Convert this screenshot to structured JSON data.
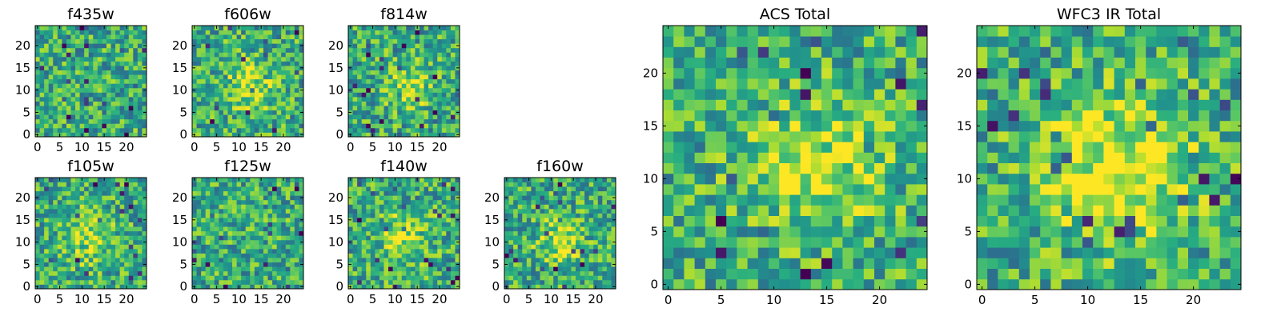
{
  "chart_data": [
    {
      "type": "heatmap",
      "title": "f435w",
      "xticks": [
        0,
        5,
        10,
        15,
        20
      ],
      "yticks": [
        0,
        5,
        10,
        15,
        20
      ],
      "grid": false,
      "colormap": "viridis",
      "pattern": "noise"
    },
    {
      "type": "heatmap",
      "title": "f606w",
      "xticks": [
        0,
        5,
        10,
        15,
        20
      ],
      "yticks": [
        0,
        5,
        10,
        15,
        20
      ],
      "grid": false,
      "colormap": "viridis",
      "pattern": "central-source"
    },
    {
      "type": "heatmap",
      "title": "f814w",
      "xticks": [
        0,
        5,
        10,
        15,
        20
      ],
      "yticks": [
        0,
        5,
        10,
        15,
        20
      ],
      "grid": false,
      "colormap": "viridis",
      "pattern": "central-source"
    },
    {
      "type": "heatmap",
      "title": "f105w",
      "xticks": [
        0,
        5,
        10,
        15,
        20
      ],
      "yticks": [
        0,
        5,
        10,
        15,
        20
      ],
      "grid": false,
      "colormap": "viridis",
      "pattern": "central-source"
    },
    {
      "type": "heatmap",
      "title": "f125w",
      "xticks": [
        0,
        5,
        10,
        15,
        20
      ],
      "yticks": [
        0,
        5,
        10,
        15,
        20
      ],
      "grid": false,
      "colormap": "viridis",
      "pattern": "noise"
    },
    {
      "type": "heatmap",
      "title": "f140w",
      "xticks": [
        0,
        5,
        10,
        15,
        20
      ],
      "yticks": [
        0,
        5,
        10,
        15,
        20
      ],
      "grid": false,
      "colormap": "viridis",
      "pattern": "central-source"
    },
    {
      "type": "heatmap",
      "title": "f160w",
      "xticks": [
        0,
        5,
        10,
        15,
        20
      ],
      "yticks": [
        0,
        5,
        10,
        15,
        20
      ],
      "grid": false,
      "colormap": "viridis",
      "pattern": "central-source"
    },
    {
      "type": "heatmap",
      "title": "ACS Total",
      "xticks": [
        0,
        5,
        10,
        15,
        20
      ],
      "yticks": [
        0,
        5,
        10,
        15,
        20
      ],
      "grid": false,
      "colormap": "viridis",
      "pattern": "central-source"
    },
    {
      "type": "heatmap",
      "title": "WFC3 IR Total",
      "xticks": [
        0,
        5,
        10,
        15,
        20
      ],
      "yticks": [
        0,
        5,
        10,
        15,
        20
      ],
      "grid": false,
      "colormap": "viridis",
      "pattern": "central-source"
    }
  ]
}
